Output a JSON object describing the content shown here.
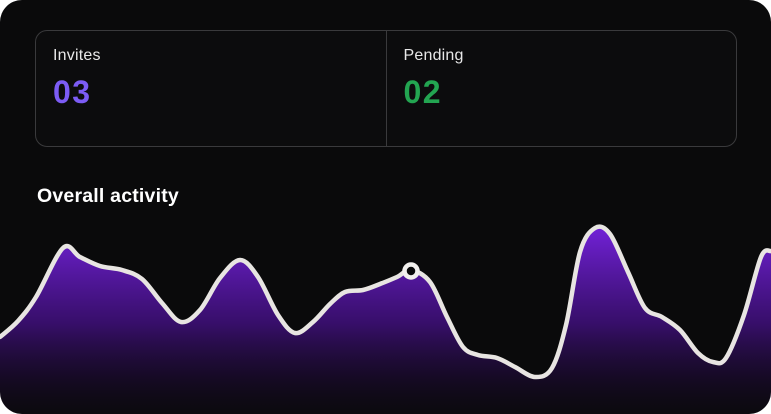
{
  "panel": {
    "background": "#0a0a0b",
    "outer_background": "#ffffff"
  },
  "stats": {
    "invites": {
      "label": "Invites",
      "value": "03",
      "color": "#7c5cf4"
    },
    "pending": {
      "label": "Pending",
      "value": "02",
      "color": "#23a551"
    }
  },
  "section": {
    "title": "Overall activity"
  },
  "chart_data": {
    "type": "area",
    "title": "Overall activity",
    "xlabel": "",
    "ylabel": "",
    "axes_visible": false,
    "grid": false,
    "legend": "none",
    "stroke_color": "#e8e5e2",
    "stroke_width": 4.5,
    "fill_gradient": {
      "top": "#7422dc",
      "mid": "#3f0f7a",
      "bottom": "#12071f"
    },
    "x_range": [
      0,
      771
    ],
    "y_baseline": 430,
    "points": [
      [
        0,
        337
      ],
      [
        18,
        321
      ],
      [
        36,
        297
      ],
      [
        63,
        248
      ],
      [
        80,
        257
      ],
      [
        100,
        266
      ],
      [
        122,
        270
      ],
      [
        142,
        279
      ],
      [
        162,
        303
      ],
      [
        181,
        322
      ],
      [
        200,
        310
      ],
      [
        220,
        278
      ],
      [
        240,
        260
      ],
      [
        258,
        277
      ],
      [
        278,
        315
      ],
      [
        295,
        333
      ],
      [
        313,
        322
      ],
      [
        330,
        304
      ],
      [
        345,
        292
      ],
      [
        363,
        290
      ],
      [
        380,
        284
      ],
      [
        397,
        277
      ],
      [
        411,
        270
      ],
      [
        430,
        282
      ],
      [
        447,
        317
      ],
      [
        463,
        347
      ],
      [
        478,
        355
      ],
      [
        497,
        358
      ],
      [
        515,
        367
      ],
      [
        535,
        377
      ],
      [
        552,
        368
      ],
      [
        566,
        325
      ],
      [
        580,
        252
      ],
      [
        595,
        228
      ],
      [
        610,
        234
      ],
      [
        628,
        272
      ],
      [
        645,
        308
      ],
      [
        662,
        317
      ],
      [
        680,
        330
      ],
      [
        698,
        353
      ],
      [
        713,
        362
      ],
      [
        726,
        358
      ],
      [
        744,
        315
      ],
      [
        761,
        257
      ],
      [
        771,
        251
      ]
    ],
    "marker": {
      "x": 411,
      "y": 271,
      "core_radius": 6.5,
      "ring_width": 4.5,
      "ring_color": "#f2f0ee",
      "core_color": "#0a0a0c"
    }
  }
}
